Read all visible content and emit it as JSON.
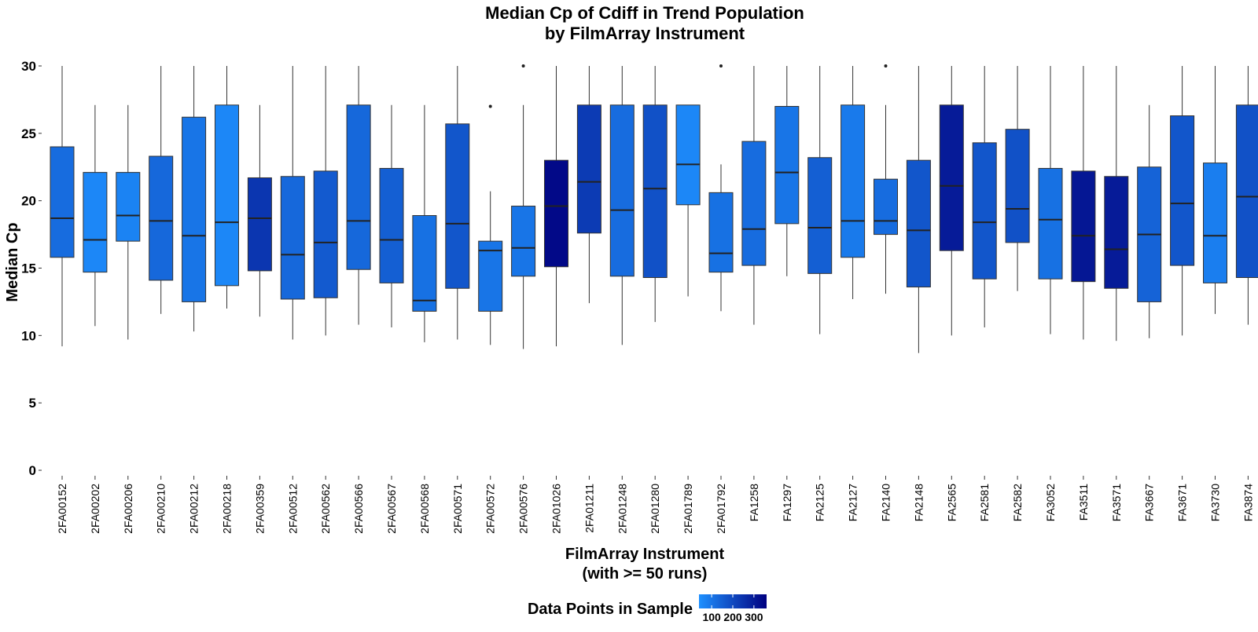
{
  "chart_data": {
    "type": "boxplot",
    "title": [
      "Median Cp of Cdiff in Trend Population",
      "by FilmArray Instrument"
    ],
    "xlabel": [
      "FilmArray Instrument",
      "(with >= 50 runs)"
    ],
    "ylabel": "Median Cp",
    "ylim": [
      0,
      30
    ],
    "yticks": [
      0,
      5,
      10,
      15,
      20,
      25,
      30
    ],
    "grid": false,
    "legend": {
      "title": "Data Points in Sample",
      "position": "bottom",
      "ticks": [
        100,
        200,
        300
      ],
      "tick_labels": [
        "100",
        "200",
        "300"
      ],
      "range": [
        40,
        360
      ],
      "colors": [
        "#1e90ff",
        "#000080"
      ]
    },
    "boxes": [
      {
        "name": "2FA00152",
        "low": 9.2,
        "q1": 15.8,
        "median": 18.7,
        "q3": 24.0,
        "high": 30.0,
        "outliers": [],
        "n": 120
      },
      {
        "name": "2FA00202",
        "low": 10.7,
        "q1": 14.7,
        "median": 17.1,
        "q3": 22.1,
        "high": 27.1,
        "outliers": [],
        "n": 60
      },
      {
        "name": "2FA00206",
        "low": 9.7,
        "q1": 17.0,
        "median": 18.9,
        "q3": 22.1,
        "high": 27.1,
        "outliers": [],
        "n": 70
      },
      {
        "name": "2FA00210",
        "low": 11.6,
        "q1": 14.1,
        "median": 18.5,
        "q3": 23.3,
        "high": 30.0,
        "outliers": [],
        "n": 130
      },
      {
        "name": "2FA00212",
        "low": 10.3,
        "q1": 12.5,
        "median": 17.4,
        "q3": 26.2,
        "high": 30.0,
        "outliers": [],
        "n": 100
      },
      {
        "name": "2FA00218",
        "low": 12.0,
        "q1": 13.7,
        "median": 18.4,
        "q3": 27.1,
        "high": 30.0,
        "outliers": [],
        "n": 60
      },
      {
        "name": "2FA00359",
        "low": 11.4,
        "q1": 14.8,
        "median": 18.7,
        "q3": 21.7,
        "high": 27.1,
        "outliers": [],
        "n": 240
      },
      {
        "name": "2FA00512",
        "low": 9.7,
        "q1": 12.7,
        "median": 16.0,
        "q3": 21.8,
        "high": 30.0,
        "outliers": [],
        "n": 130
      },
      {
        "name": "2FA00562",
        "low": 10.0,
        "q1": 12.8,
        "median": 16.9,
        "q3": 22.2,
        "high": 30.0,
        "outliers": [],
        "n": 160
      },
      {
        "name": "2FA00566",
        "low": 10.8,
        "q1": 14.9,
        "median": 18.5,
        "q3": 27.1,
        "high": 30.0,
        "outliers": [],
        "n": 130
      },
      {
        "name": "2FA00567",
        "low": 10.6,
        "q1": 13.9,
        "median": 17.1,
        "q3": 22.4,
        "high": 27.1,
        "outliers": [],
        "n": 150
      },
      {
        "name": "2FA00568",
        "low": 9.5,
        "q1": 11.8,
        "median": 12.6,
        "q3": 18.9,
        "high": 27.1,
        "outliers": [],
        "n": 110
      },
      {
        "name": "2FA00571",
        "low": 9.7,
        "q1": 13.5,
        "median": 18.3,
        "q3": 25.7,
        "high": 30.0,
        "outliers": [],
        "n": 170
      },
      {
        "name": "2FA00572",
        "low": 9.3,
        "q1": 11.8,
        "median": 16.3,
        "q3": 17.0,
        "high": 20.7,
        "outliers": [
          27.0
        ],
        "n": 100
      },
      {
        "name": "2FA00576",
        "low": 9.0,
        "q1": 14.4,
        "median": 16.5,
        "q3": 19.6,
        "high": 27.1,
        "outliers": [
          30.0
        ],
        "n": 100
      },
      {
        "name": "2FA01026",
        "low": 9.2,
        "q1": 15.1,
        "median": 19.6,
        "q3": 23.0,
        "high": 30.0,
        "outliers": [],
        "n": 340
      },
      {
        "name": "2FA01211",
        "low": 12.4,
        "q1": 17.6,
        "median": 21.4,
        "q3": 27.1,
        "high": 30.0,
        "outliers": [],
        "n": 230
      },
      {
        "name": "2FA01248",
        "low": 9.3,
        "q1": 14.4,
        "median": 19.3,
        "q3": 27.1,
        "high": 30.0,
        "outliers": [],
        "n": 120
      },
      {
        "name": "2FA01280",
        "low": 11.0,
        "q1": 14.3,
        "median": 20.9,
        "q3": 27.1,
        "high": 30.0,
        "outliers": [],
        "n": 180
      },
      {
        "name": "2FA01789",
        "low": 12.9,
        "q1": 19.7,
        "median": 22.7,
        "q3": 27.1,
        "high": 27.1,
        "outliers": [],
        "n": 60
      },
      {
        "name": "2FA01792",
        "low": 11.8,
        "q1": 14.7,
        "median": 16.1,
        "q3": 20.6,
        "high": 22.7,
        "outliers": [
          30.0
        ],
        "n": 110
      },
      {
        "name": "FA1258",
        "low": 10.8,
        "q1": 15.2,
        "median": 17.9,
        "q3": 24.4,
        "high": 30.0,
        "outliers": [],
        "n": 120
      },
      {
        "name": "FA1297",
        "low": 14.4,
        "q1": 18.3,
        "median": 22.1,
        "q3": 27.0,
        "high": 30.0,
        "outliers": [],
        "n": 100
      },
      {
        "name": "FA2125",
        "low": 10.1,
        "q1": 14.6,
        "median": 18.0,
        "q3": 23.2,
        "high": 30.0,
        "outliers": [],
        "n": 150
      },
      {
        "name": "FA2127",
        "low": 12.7,
        "q1": 15.8,
        "median": 18.5,
        "q3": 27.1,
        "high": 30.0,
        "outliers": [],
        "n": 90
      },
      {
        "name": "FA2140",
        "low": 13.1,
        "q1": 17.5,
        "median": 18.5,
        "q3": 21.6,
        "high": 27.1,
        "outliers": [
          30.0
        ],
        "n": 120
      },
      {
        "name": "FA2148",
        "low": 8.7,
        "q1": 13.6,
        "median": 17.8,
        "q3": 23.0,
        "high": 30.0,
        "outliers": [],
        "n": 170
      },
      {
        "name": "FA2565",
        "low": 10.0,
        "q1": 16.3,
        "median": 21.1,
        "q3": 27.1,
        "high": 30.0,
        "outliers": [],
        "n": 300
      },
      {
        "name": "FA2581",
        "low": 10.6,
        "q1": 14.2,
        "median": 18.4,
        "q3": 24.3,
        "high": 30.0,
        "outliers": [],
        "n": 170
      },
      {
        "name": "FA2582",
        "low": 13.3,
        "q1": 16.9,
        "median": 19.4,
        "q3": 25.3,
        "high": 30.0,
        "outliers": [],
        "n": 180
      },
      {
        "name": "FA3052",
        "low": 10.1,
        "q1": 14.2,
        "median": 18.6,
        "q3": 22.4,
        "high": 30.0,
        "outliers": [],
        "n": 110
      },
      {
        "name": "FA3511",
        "low": 9.7,
        "q1": 14.0,
        "median": 17.4,
        "q3": 22.2,
        "high": 30.0,
        "outliers": [],
        "n": 310
      },
      {
        "name": "FA3571",
        "low": 9.6,
        "q1": 13.5,
        "median": 16.4,
        "q3": 21.8,
        "high": 30.0,
        "outliers": [],
        "n": 300
      },
      {
        "name": "FA3667",
        "low": 9.8,
        "q1": 12.5,
        "median": 17.5,
        "q3": 22.5,
        "high": 27.1,
        "outliers": [],
        "n": 140
      },
      {
        "name": "FA3671",
        "low": 10.0,
        "q1": 15.2,
        "median": 19.8,
        "q3": 26.3,
        "high": 30.0,
        "outliers": [],
        "n": 170
      },
      {
        "name": "FA3730",
        "low": 11.6,
        "q1": 13.9,
        "median": 17.4,
        "q3": 22.8,
        "high": 30.0,
        "outliers": [],
        "n": 80
      },
      {
        "name": "FA3874",
        "low": 10.8,
        "q1": 14.3,
        "median": 20.3,
        "q3": 27.1,
        "high": 30.0,
        "outliers": [],
        "n": 180
      }
    ]
  }
}
